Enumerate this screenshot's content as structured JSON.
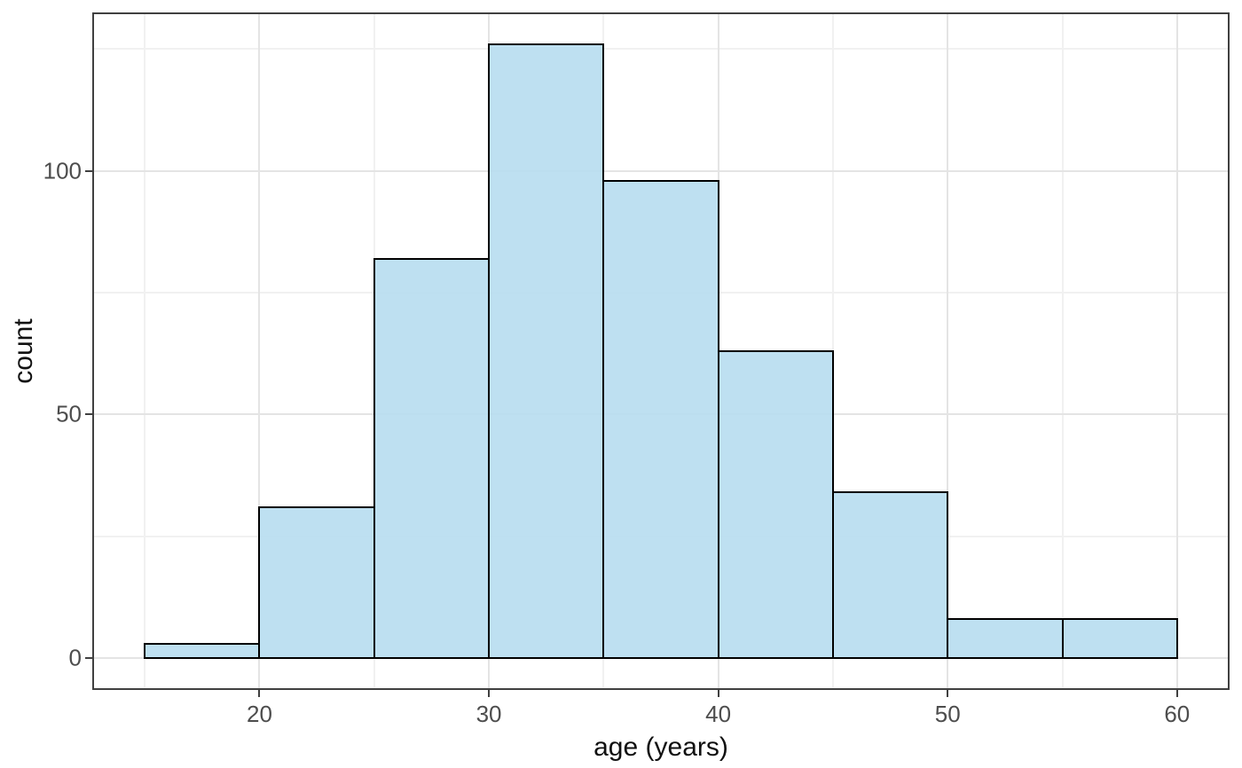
{
  "chart_data": {
    "type": "bar",
    "subtype": "histogram",
    "title": "",
    "xlabel": "age (years)",
    "ylabel": "count",
    "legend": "none",
    "grid": "on",
    "bin_width": 5,
    "bins": [
      {
        "x0": 15,
        "x1": 20,
        "count": 3
      },
      {
        "x0": 20,
        "x1": 25,
        "count": 31
      },
      {
        "x0": 25,
        "x1": 30,
        "count": 82
      },
      {
        "x0": 30,
        "x1": 35,
        "count": 126
      },
      {
        "x0": 35,
        "x1": 40,
        "count": 98
      },
      {
        "x0": 40,
        "x1": 45,
        "count": 63
      },
      {
        "x0": 45,
        "x1": 50,
        "count": 34
      },
      {
        "x0": 50,
        "x1": 55,
        "count": 8
      },
      {
        "x0": 55,
        "x1": 60,
        "count": 8
      }
    ],
    "x_ticks": [
      20,
      30,
      40,
      50,
      60
    ],
    "x_tick_labels": [
      "20",
      "30",
      "40",
      "50",
      "60"
    ],
    "y_ticks": [
      0,
      50,
      100
    ],
    "y_tick_labels": [
      "0",
      "50",
      "100"
    ],
    "x_minor_gridlines": [
      15,
      25,
      35,
      45,
      55
    ],
    "y_minor_gridlines": [
      25,
      75,
      125
    ],
    "x_range": [
      12.75,
      62.25
    ],
    "y_range": [
      -6.3,
      132.3
    ],
    "style": {
      "bar_fill": "#b7ddf0",
      "bar_fill_opacity": 0.9,
      "bar_stroke": "#000000",
      "bar_stroke_width": 2,
      "grid_major_color": "#e4e4e4",
      "grid_minor_color": "#f1f1f1",
      "panel_border_color": "#404040",
      "tick_color": "#404040",
      "tick_label_color": "#4d4d4d",
      "axis_title_color": "#111111",
      "background": "#ffffff"
    }
  }
}
